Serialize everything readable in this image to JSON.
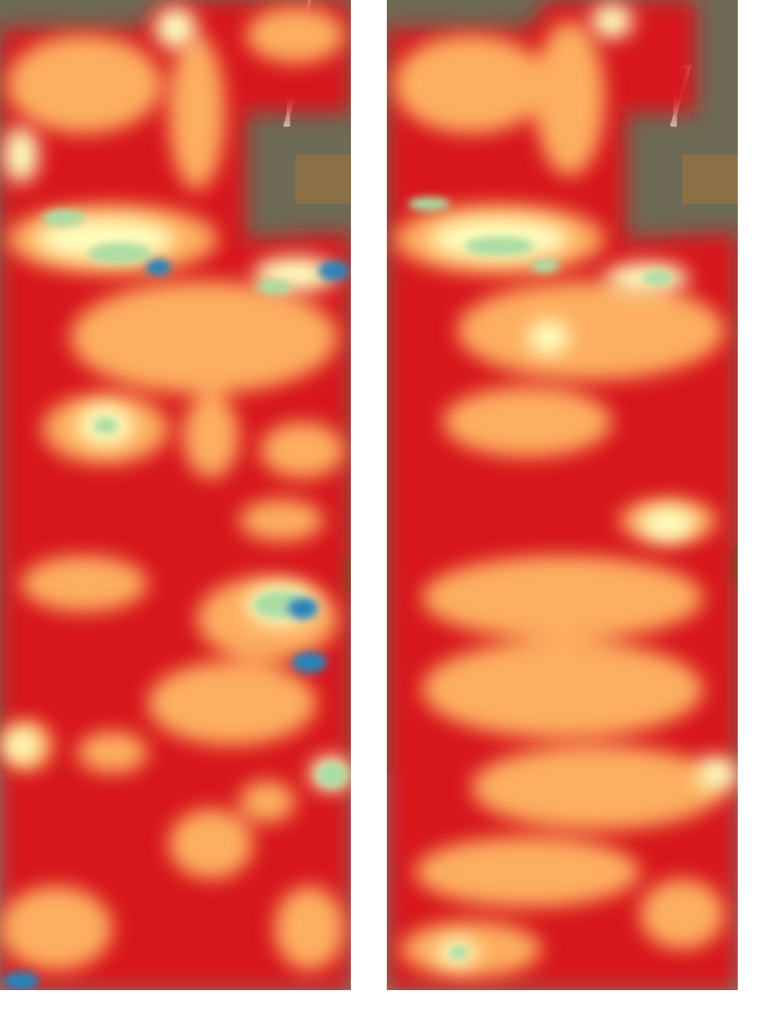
{
  "figure": {
    "panels": [
      {
        "id": "left",
        "kind": "aerial-image-with-density-heatmap",
        "colormap": [
          "#d7191c",
          "#fdae61",
          "#ffffbf",
          "#abdda4",
          "#2b83ba"
        ],
        "blue_hotspot_count": 5
      },
      {
        "id": "right",
        "kind": "aerial-image-with-density-heatmap",
        "colormap": [
          "#d7191c",
          "#fdae61",
          "#ffffbf",
          "#abdda4"
        ],
        "blue_hotspot_count": 0
      }
    ],
    "colors": {
      "background": "#ffffff",
      "terrain_bare": "#6f6a55",
      "terrain_green": "#3f7a3a",
      "roads": "#c9c4b6",
      "heat_low": "#d7191c",
      "heat_mid": "#fdae61",
      "heat_high": "#ffffbf",
      "heat_higher": "#abdda4",
      "heat_peak": "#2b83ba"
    }
  }
}
